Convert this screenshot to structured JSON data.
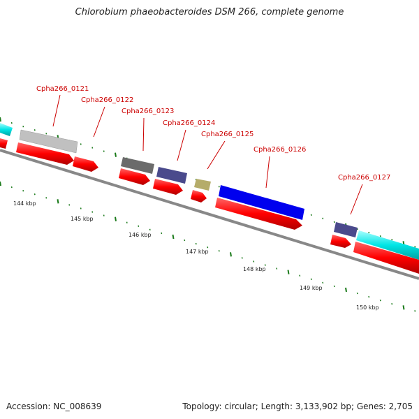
{
  "title": "Chlorobium phaeobacteroides DSM 266, complete genome",
  "footer": {
    "accession": "Accession: NC_008639",
    "summary": "Topology: circular; Length: 3,133,902 bp; Genes: 2,705"
  },
  "colors": {
    "cds": "#ff0000",
    "backbone": "#888888",
    "tick_major": "#1a7a1a",
    "label": "#cc0000"
  },
  "genes": [
    {
      "id": "Cpha266_0121",
      "color": "#c0c0c0"
    },
    {
      "id": "Cpha266_0122",
      "color": "#ff0000"
    },
    {
      "id": "Cpha266_0123",
      "color": "#6b6b6b"
    },
    {
      "id": "Cpha266_0124",
      "color": "#4a4a8c"
    },
    {
      "id": "Cpha266_0125",
      "color": "#b5ac6a"
    },
    {
      "id": "Cpha266_0126",
      "color": "#0000ee"
    },
    {
      "id": "Cpha266_0127",
      "color": "#4a4a8c"
    }
  ],
  "scale_labels": [
    "144 kbp",
    "145 kbp",
    "146 kbp",
    "147 kbp",
    "148 kbp",
    "149 kbp",
    "150 kbp"
  ]
}
